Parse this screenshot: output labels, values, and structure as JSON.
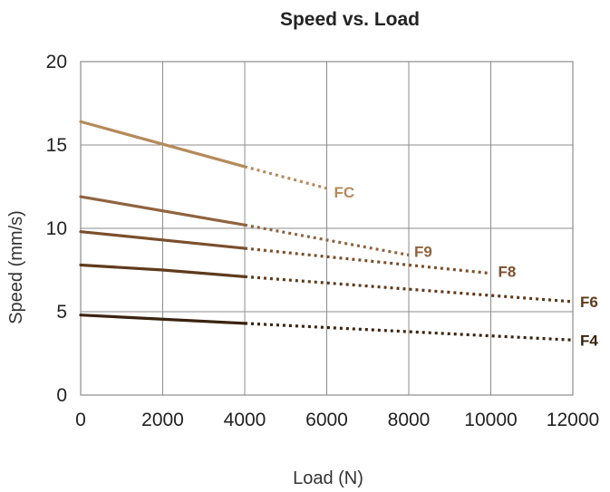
{
  "chart_data": {
    "type": "line",
    "title": "Speed vs. Load",
    "xlabel": "Load (N)",
    "ylabel": "Speed (mm/s)",
    "xlim": [
      0,
      12000
    ],
    "ylim": [
      0,
      20
    ],
    "xticks": [
      "0",
      "2000",
      "4000",
      "6000",
      "8000",
      "10000",
      "12000"
    ],
    "yticks": [
      "0",
      "5",
      "10",
      "15",
      "20"
    ],
    "grid": true,
    "legend": "none (series labelled at line ends)",
    "series": [
      {
        "name": "FC",
        "color": "#b58a5c",
        "solid": {
          "x": [
            0,
            4000
          ],
          "y": [
            16.4,
            13.7
          ]
        },
        "dotted": {
          "x": [
            4000,
            6000
          ],
          "y": [
            13.7,
            12.4
          ]
        }
      },
      {
        "name": "F9",
        "color": "#8f6440",
        "solid": {
          "x": [
            0,
            4000
          ],
          "y": [
            11.9,
            10.2
          ]
        },
        "dotted": {
          "x": [
            4000,
            8000
          ],
          "y": [
            10.2,
            8.4
          ]
        }
      },
      {
        "name": "F8",
        "color": "#7a4f2c",
        "solid": {
          "x": [
            0,
            4000
          ],
          "y": [
            9.8,
            8.8
          ]
        },
        "dotted": {
          "x": [
            4000,
            10000
          ],
          "y": [
            8.8,
            7.3
          ]
        }
      },
      {
        "name": "F6",
        "color": "#5e3a1c",
        "solid": {
          "x": [
            0,
            2000,
            4000
          ],
          "y": [
            7.8,
            7.5,
            7.1
          ]
        },
        "dotted": {
          "x": [
            4000,
            12000
          ],
          "y": [
            7.1,
            5.6
          ]
        }
      },
      {
        "name": "F4",
        "color": "#3a230f",
        "solid": {
          "x": [
            0,
            4000
          ],
          "y": [
            4.8,
            4.3
          ]
        },
        "dotted": {
          "x": [
            4000,
            12000
          ],
          "y": [
            4.3,
            3.3
          ]
        }
      }
    ]
  }
}
